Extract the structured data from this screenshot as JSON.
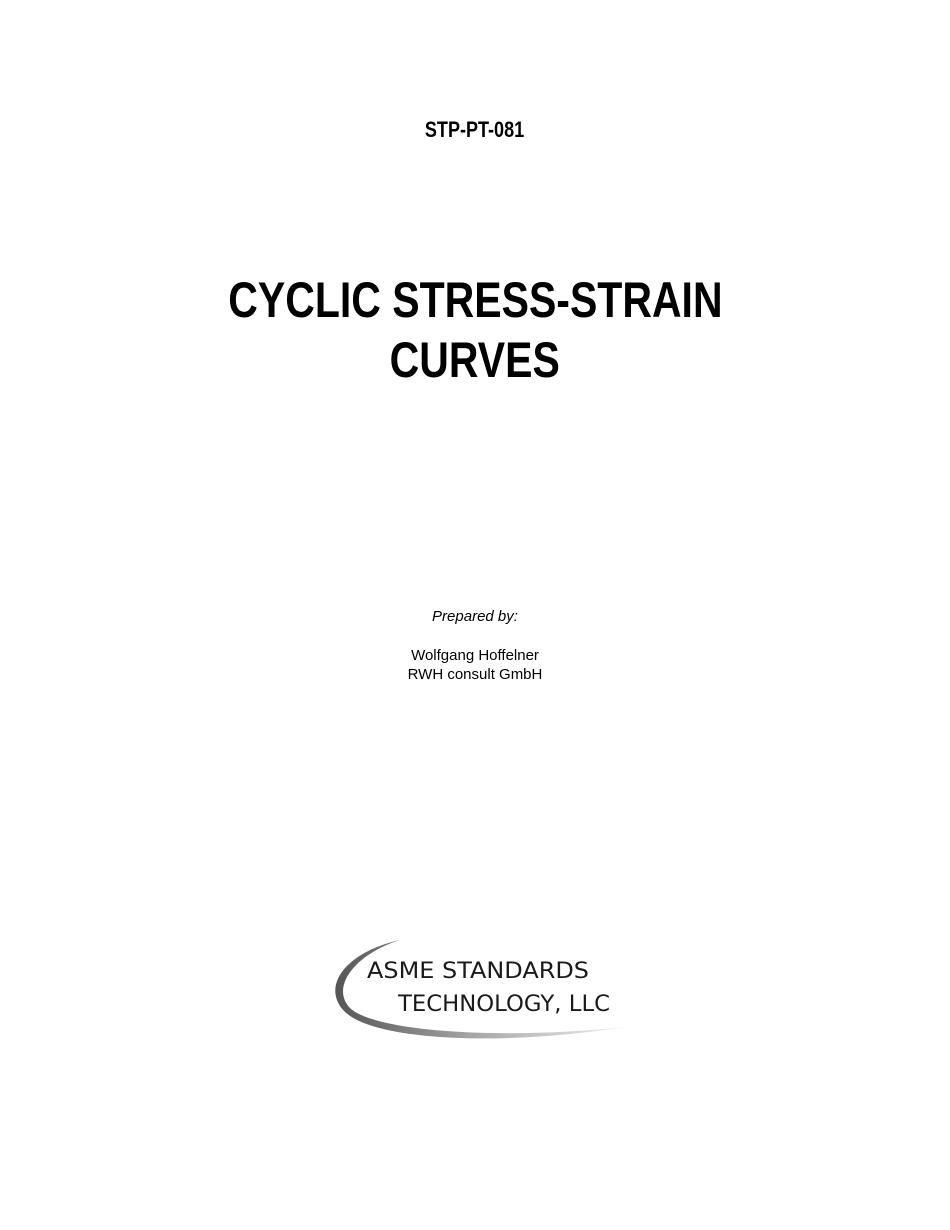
{
  "document": {
    "number": "STP-PT-081",
    "title_line1": "CYCLIC STRESS-STRAIN",
    "title_line2": "CURVES",
    "prepared_by_label": "Prepared by:",
    "author": "Wolfgang Hoffelner",
    "organization": "RWH consult GmbH"
  },
  "logo": {
    "line1": "ASME STANDARDS",
    "line2": "TECHNOLOGY, LLC",
    "color": "#1a1a1a",
    "swoosh_color": "#9a9a9a"
  }
}
